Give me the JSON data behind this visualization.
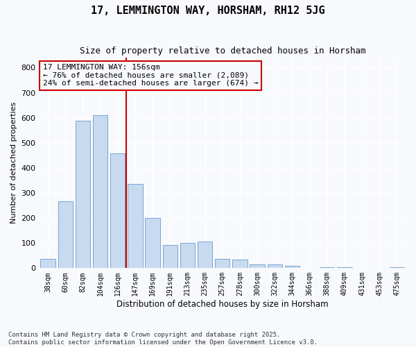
{
  "title": "17, LEMMINGTON WAY, HORSHAM, RH12 5JG",
  "subtitle": "Size of property relative to detached houses in Horsham",
  "xlabel": "Distribution of detached houses by size in Horsham",
  "ylabel": "Number of detached properties",
  "bar_color": "#c8daf0",
  "bar_edgecolor": "#6699cc",
  "vline_color": "#cc0000",
  "vline_position": 4.5,
  "annotation_text": "17 LEMMINGTON WAY: 156sqm\n← 76% of detached houses are smaller (2,089)\n24% of semi-detached houses are larger (674) →",
  "annotation_edgecolor": "#cc0000",
  "categories": [
    "38sqm",
    "60sqm",
    "82sqm",
    "104sqm",
    "126sqm",
    "147sqm",
    "169sqm",
    "191sqm",
    "213sqm",
    "235sqm",
    "257sqm",
    "278sqm",
    "300sqm",
    "322sqm",
    "344sqm",
    "366sqm",
    "388sqm",
    "409sqm",
    "431sqm",
    "453sqm",
    "475sqm"
  ],
  "values": [
    38,
    268,
    588,
    610,
    457,
    335,
    200,
    92,
    100,
    105,
    38,
    35,
    15,
    15,
    10,
    0,
    5,
    5,
    0,
    0,
    5
  ],
  "ylim": [
    0,
    840
  ],
  "yticks": [
    0,
    100,
    200,
    300,
    400,
    500,
    600,
    700,
    800
  ],
  "fig_bg": "#f7f9fd",
  "plot_bg": "#f7f9fd",
  "grid_color": "#ffffff",
  "footer": "Contains HM Land Registry data © Crown copyright and database right 2025.\nContains public sector information licensed under the Open Government Licence v3.0.",
  "title_fontsize": 11,
  "subtitle_fontsize": 9,
  "ylabel_fontsize": 8,
  "xlabel_fontsize": 8.5,
  "ytick_fontsize": 8,
  "xtick_fontsize": 7,
  "annot_fontsize": 8,
  "footer_fontsize": 6.5
}
